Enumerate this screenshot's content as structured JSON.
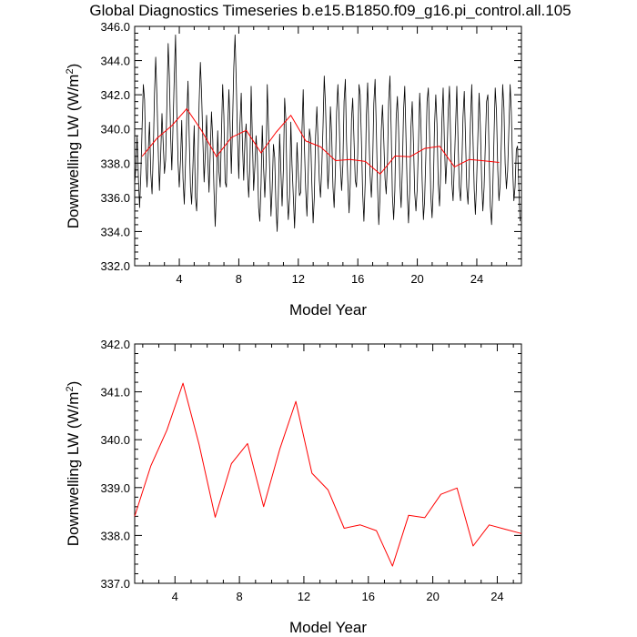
{
  "title": "Global Diagnostics Timeseries b.e15.B1850.f09_g16.pi_control.all.105",
  "colors": {
    "monthly": "#000000",
    "annual": "#ff0000"
  },
  "chart_data": [
    {
      "type": "line",
      "name": "monthly-and-annual",
      "xlabel": "Model Year",
      "ylabel_main": "Downwelling LW (W/m",
      "ylabel_sup": "2",
      "ylabel_end": ")",
      "xlim": [
        1,
        27
      ],
      "ylim": [
        332,
        346
      ],
      "xticks": [
        4,
        8,
        12,
        16,
        20,
        24
      ],
      "xtick_labels": [
        "4",
        "8",
        "12",
        "16",
        "20",
        "24"
      ],
      "yticks": [
        332,
        334,
        336,
        338,
        340,
        342,
        344,
        346
      ],
      "ytick_labels": [
        "332.0",
        "334.0",
        "336.0",
        "338.0",
        "340.0",
        "342.0",
        "344.0",
        "346.0"
      ],
      "series": [
        {
          "name": "monthly",
          "x0": 1.0,
          "dx": 0.0833,
          "values": [
            336.8,
            337.8,
            339.6,
            337.1,
            335.4,
            337.4,
            340.2,
            342.6,
            341.7,
            338.0,
            336.6,
            338.8,
            340.4,
            337.4,
            336.2,
            338.6,
            342.1,
            344.2,
            341.8,
            338.7,
            336.4,
            338.5,
            340.9,
            339.2,
            337.4,
            338.2,
            341.4,
            345.0,
            343.1,
            339.6,
            337.6,
            340.3,
            343.2,
            345.5,
            341.0,
            338.0,
            336.6,
            338.2,
            340.5,
            337.1,
            335.6,
            337.9,
            340.6,
            342.8,
            339.6,
            336.6,
            335.6,
            337.8,
            340.2,
            336.0,
            335.2,
            337.8,
            341.5,
            343.9,
            342.1,
            339.4,
            336.9,
            338.5,
            340.8,
            338.3,
            336.3,
            338.7,
            341.0,
            339.4,
            336.5,
            334.3,
            336.6,
            339.9,
            337.5,
            336.6,
            339.6,
            342.6,
            340.8,
            336.9,
            336.6,
            339.7,
            342.3,
            340.3,
            337.4,
            340.4,
            343.6,
            345.5,
            342.6,
            339.5,
            337.1,
            340.3,
            342.1,
            339.0,
            337.0,
            339.4,
            340.3,
            337.5,
            336.0,
            337.8,
            342.5,
            339.3,
            336.4,
            337.8,
            339.6,
            338.4,
            335.4,
            334.6,
            336.8,
            340.2,
            337.8,
            336.0,
            337.7,
            342.6,
            340.0,
            337.6,
            334.9,
            336.5,
            339.1,
            338.3,
            335.5,
            334.0,
            336.2,
            339.7,
            337.5,
            335.5,
            337.6,
            341.8,
            340.6,
            336.3,
            334.7,
            336.0,
            340.4,
            337.9,
            336.1,
            334.2,
            336.3,
            339.2,
            337.5,
            336.1,
            336.3,
            339.8,
            342.3,
            339.0,
            336.5,
            334.9,
            337.2,
            340.0,
            339.4,
            336.8,
            334.5,
            336.0,
            339.6,
            341.3,
            339.3,
            337.0,
            336.0,
            337.7,
            340.2,
            343.1,
            341.4,
            338.5,
            336.5,
            338.0,
            341.3,
            339.6,
            336.6,
            335.4,
            337.6,
            341.0,
            342.6,
            340.5,
            337.9,
            336.4,
            337.9,
            341.6,
            342.9,
            339.3,
            337.0,
            335.1,
            336.8,
            340.6,
            341.8,
            339.4,
            337.0,
            336.6,
            338.5,
            342.6,
            342.0,
            339.3,
            336.3,
            334.6,
            336.8,
            340.8,
            342.7,
            339.9,
            337.3,
            336.0,
            337.7,
            341.5,
            342.9,
            340.1,
            336.6,
            334.4,
            336.0,
            339.9,
            341.4,
            339.4,
            337.1,
            336.2,
            338.1,
            341.6,
            343.1,
            339.9,
            336.1,
            334.7,
            336.4,
            340.6,
            341.9,
            340.0,
            336.9,
            335.4,
            337.6,
            341.1,
            342.5,
            339.4,
            336.2,
            334.5,
            336.5,
            340.1,
            341.6,
            339.1,
            336.3,
            335.2,
            336.5,
            339.0,
            342.1,
            340.4,
            337.0,
            334.7,
            335.8,
            338.5,
            341.6,
            342.4,
            339.6,
            336.1,
            334.8,
            336.6,
            340.2,
            342.0,
            340.3,
            336.8,
            335.5,
            337.5,
            340.6,
            342.4,
            339.1,
            336.8,
            338.2,
            341.0,
            342.5,
            339.5,
            336.8,
            335.8,
            337.9,
            340.3,
            342.5,
            339.2,
            336.6,
            335.8,
            337.8,
            340.7,
            342.2,
            339.4,
            336.6,
            335.6,
            337.5,
            340.4,
            342.6,
            339.6,
            336.5,
            335.0,
            337.0,
            339.7,
            342.1,
            340.1,
            337.0,
            335.2,
            336.6,
            339.0,
            341.6,
            342.0,
            338.7,
            335.5,
            334.4,
            336.4,
            339.6,
            342.4,
            341.0,
            337.6,
            335.8,
            336.8,
            339.4,
            342.6,
            341.2,
            338.0,
            336.5,
            337.6,
            340.0,
            342.6,
            341.0,
            337.8,
            335.8,
            336.6,
            338.8,
            339.0,
            336.7,
            334.6
          ]
        },
        {
          "name": "annual",
          "x": [
            1.5,
            2.5,
            3.5,
            4.5,
            5.5,
            6.5,
            7.5,
            8.5,
            9.5,
            10.5,
            11.5,
            12.5,
            13.5,
            14.5,
            15.5,
            16.5,
            17.5,
            18.5,
            19.5,
            20.5,
            21.5,
            22.5,
            23.5,
            24.5,
            25.5
          ],
          "values": [
            338.4,
            339.45,
            340.2,
            341.18,
            339.9,
            338.38,
            339.5,
            339.92,
            338.6,
            339.8,
            340.8,
            339.3,
            338.95,
            338.15,
            338.22,
            338.1,
            337.36,
            338.42,
            338.37,
            338.86,
            338.99,
            337.78,
            338.22,
            338.13,
            338.04
          ]
        }
      ]
    },
    {
      "type": "line",
      "name": "annual-only",
      "xlabel": "Model Year",
      "ylabel_main": "Downwelling LW (W/m",
      "ylabel_sup": "2",
      "ylabel_end": ")",
      "xlim": [
        1.5,
        25.5
      ],
      "ylim": [
        337,
        342
      ],
      "xticks": [
        4,
        8,
        12,
        16,
        20,
        24
      ],
      "xtick_labels": [
        "4",
        "8",
        "12",
        "16",
        "20",
        "24"
      ],
      "yticks": [
        337,
        338,
        339,
        340,
        341,
        342
      ],
      "ytick_labels": [
        "337.0",
        "338.0",
        "339.0",
        "340.0",
        "341.0",
        "342.0"
      ],
      "series": [
        {
          "name": "annual",
          "x": [
            1.5,
            2.5,
            3.5,
            4.5,
            5.5,
            6.5,
            7.5,
            8.5,
            9.5,
            10.5,
            11.5,
            12.5,
            13.5,
            14.5,
            15.5,
            16.5,
            17.5,
            18.5,
            19.5,
            20.5,
            21.5,
            22.5,
            23.5,
            24.5,
            25.5
          ],
          "values": [
            338.4,
            339.45,
            340.2,
            341.18,
            339.9,
            338.38,
            339.5,
            339.92,
            338.6,
            339.8,
            340.8,
            339.3,
            338.95,
            338.15,
            338.22,
            338.1,
            337.36,
            338.42,
            338.37,
            338.86,
            338.99,
            337.78,
            338.22,
            338.13,
            338.04
          ]
        }
      ]
    }
  ]
}
